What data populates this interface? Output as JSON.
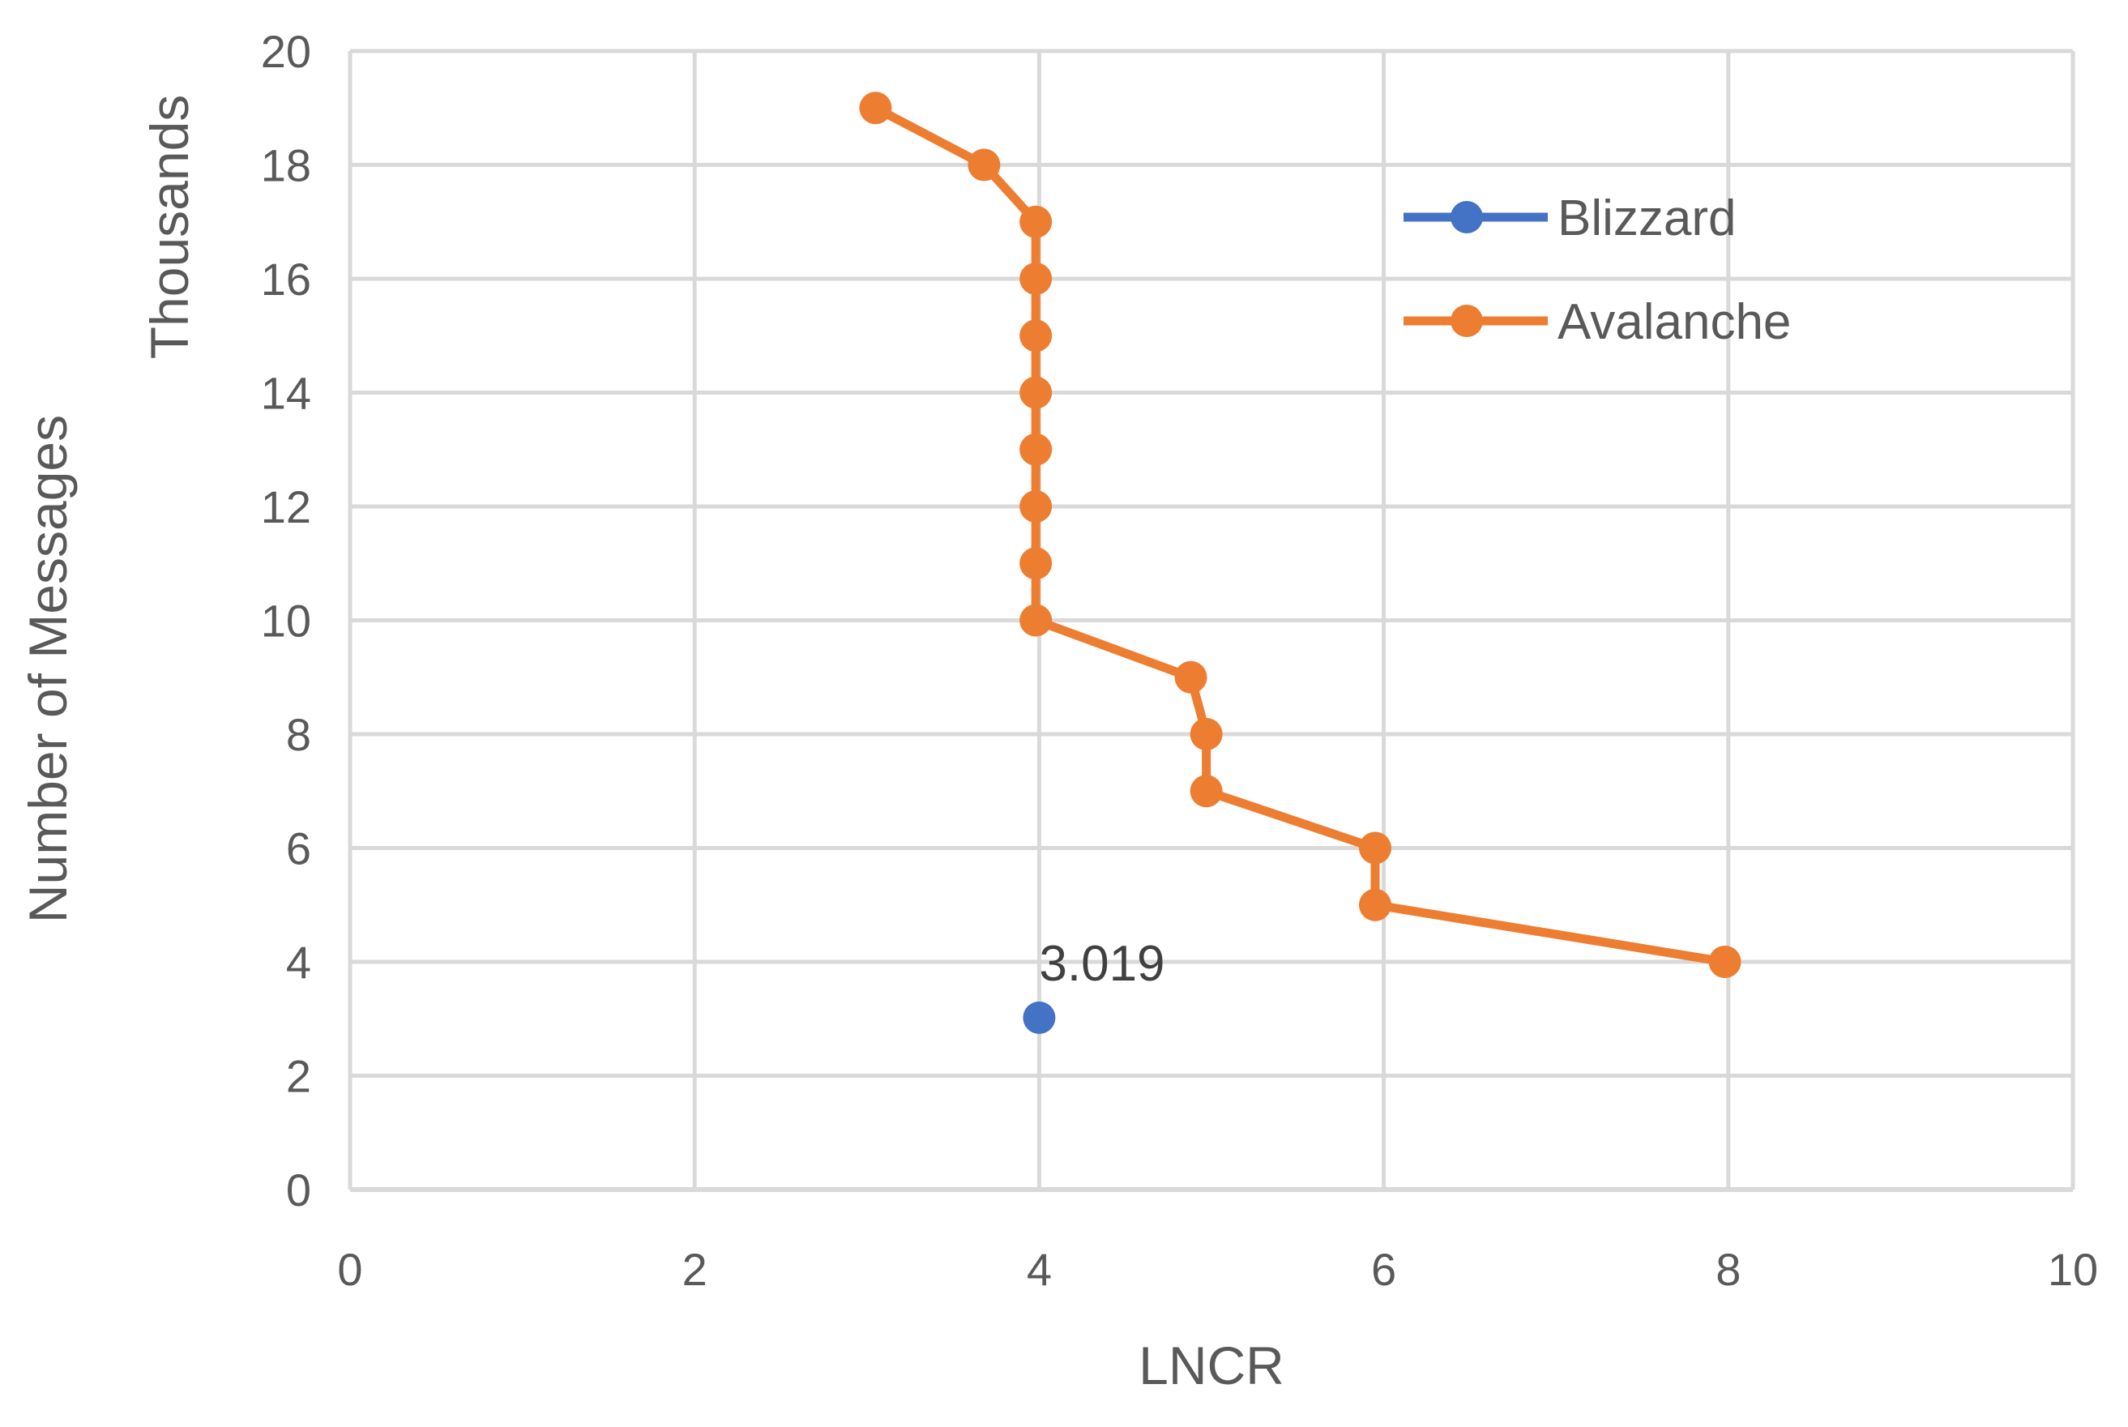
{
  "chart_data": {
    "type": "scatter",
    "xlabel": "LNCR",
    "ylabel": "Number of Messages",
    "ylabel_units": "Thousands",
    "xlim": [
      0,
      10
    ],
    "ylim": [
      0,
      20
    ],
    "x_ticks": [
      0,
      2,
      4,
      6,
      8,
      10
    ],
    "y_ticks": [
      0,
      2,
      4,
      6,
      8,
      10,
      12,
      14,
      16,
      18,
      20
    ],
    "grid": true,
    "legend_position": "top-right",
    "series": [
      {
        "name": "Blizzard",
        "color": "#4472C4",
        "lines": true,
        "markers": true,
        "points": [
          {
            "x": 4,
            "y": 3.019,
            "label": "3.019"
          }
        ]
      },
      {
        "name": "Avalanche",
        "color": "#ED7D31",
        "lines": true,
        "markers": true,
        "points": [
          {
            "x": 3.05,
            "y": 19
          },
          {
            "x": 3.68,
            "y": 18
          },
          {
            "x": 3.98,
            "y": 17
          },
          {
            "x": 3.98,
            "y": 16
          },
          {
            "x": 3.98,
            "y": 15
          },
          {
            "x": 3.98,
            "y": 14
          },
          {
            "x": 3.98,
            "y": 13
          },
          {
            "x": 3.98,
            "y": 12
          },
          {
            "x": 3.98,
            "y": 11
          },
          {
            "x": 3.98,
            "y": 10
          },
          {
            "x": 4.88,
            "y": 9
          },
          {
            "x": 4.97,
            "y": 8
          },
          {
            "x": 4.97,
            "y": 7
          },
          {
            "x": 5.95,
            "y": 6
          },
          {
            "x": 5.95,
            "y": 5
          },
          {
            "x": 7.98,
            "y": 4
          }
        ]
      }
    ]
  }
}
